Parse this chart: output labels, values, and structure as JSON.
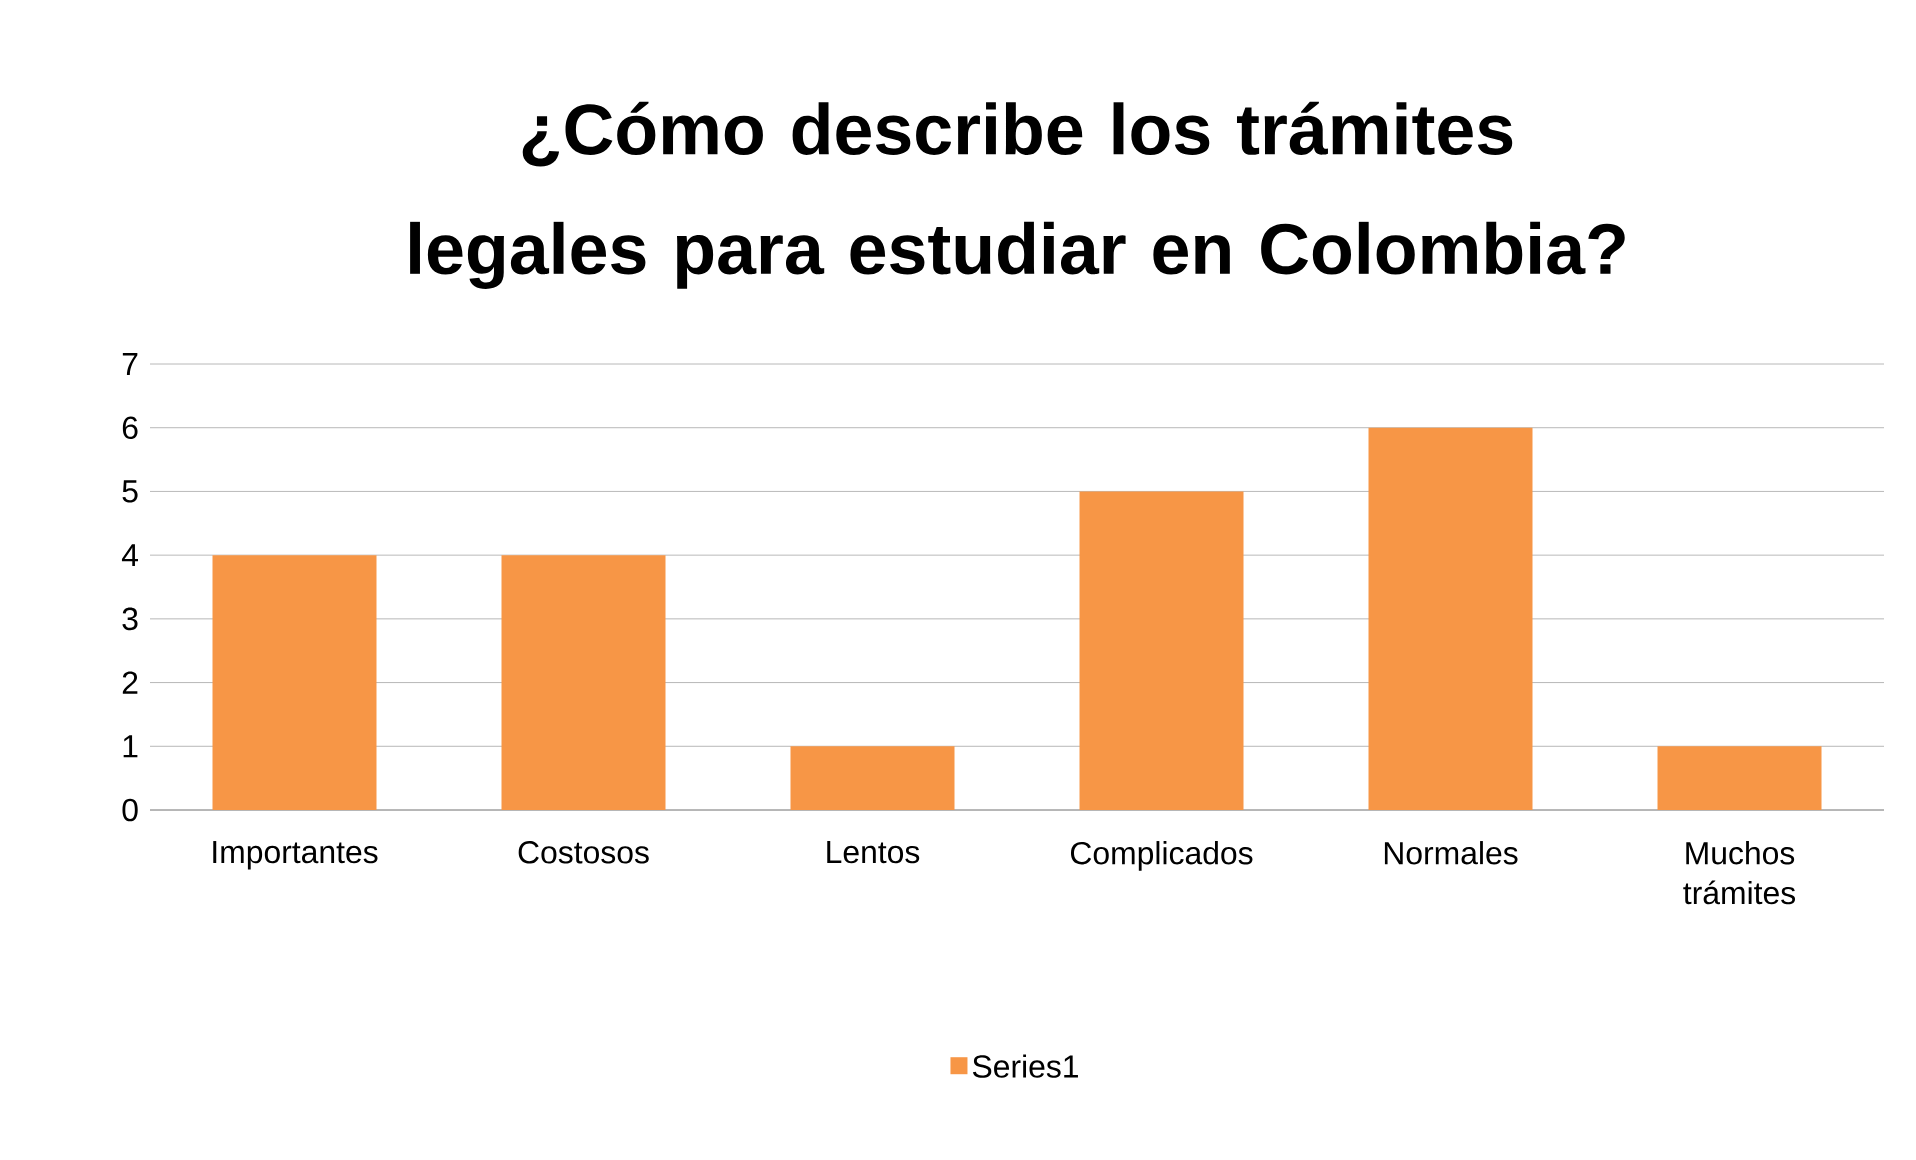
{
  "chart_data": {
    "type": "bar",
    "title": "¿Cómo describe los trámites legales para estudiar en Colombia?",
    "categories": [
      "Importantes",
      "Costosos",
      "Lentos",
      "Complicados",
      "Normales",
      "Muchos trámites"
    ],
    "series": [
      {
        "name": "Series1",
        "color": "#f79646",
        "values": [
          4,
          4,
          1,
          5,
          6,
          1
        ]
      }
    ],
    "ylim": [
      0,
      7
    ],
    "yticks": [
      0,
      1,
      2,
      3,
      4,
      5,
      6,
      7
    ],
    "grid": "y",
    "legend": "bottom"
  }
}
